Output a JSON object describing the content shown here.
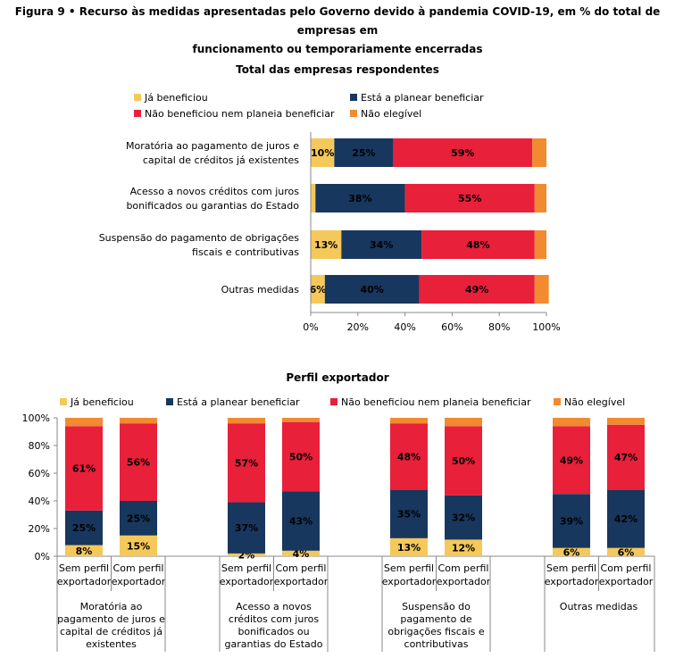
{
  "figure": {
    "title_line1": "Figura 9 • Recurso às medidas apresentadas pelo Governo devido à pandemia COVID-19, em % do total de empresas em",
    "title_line2": "funcionamento ou temporariamente encerradas"
  },
  "colors": {
    "ja_beneficiou": "#F5C85A",
    "planear": "#17375E",
    "nao_beneficiou": "#E8203A",
    "nao_elegivel": "#F28A30"
  },
  "chart_data": [
    {
      "type": "bar",
      "orientation": "horizontal",
      "stacked": true,
      "title": "Total das empresas respondentes",
      "legend": [
        "Já beneficiou",
        "Está a planear beneficiar",
        "Não beneficiou nem planeia beneficiar",
        "Não elegível"
      ],
      "legend_position": "top",
      "categories": [
        [
          "Moratória ao pagamento de juros e",
          "capital de créditos já existentes"
        ],
        [
          "Acesso a novos créditos com juros",
          "bonificados ou garantias do Estado"
        ],
        [
          "Suspensão do pagamento de obrigações",
          "fiscais e contributivas"
        ],
        [
          "Outras medidas"
        ]
      ],
      "series": [
        {
          "name": "Já beneficiou",
          "values": [
            10,
            2,
            13,
            6
          ],
          "labels": [
            "10%",
            "",
            "13%",
            "6%"
          ]
        },
        {
          "name": "Está a planear beneficiar",
          "values": [
            25,
            38,
            34,
            40
          ],
          "labels": [
            "25%",
            "38%",
            "34%",
            "40%"
          ]
        },
        {
          "name": "Não beneficiou nem planeia beneficiar",
          "values": [
            59,
            55,
            48,
            49
          ],
          "labels": [
            "59%",
            "55%",
            "48%",
            "49%"
          ]
        },
        {
          "name": "Não elegível",
          "values": [
            6,
            5,
            5,
            6
          ],
          "labels": [
            "",
            "",
            "",
            ""
          ]
        }
      ],
      "xlim": [
        0,
        100
      ],
      "ticks": [
        "0%",
        "20%",
        "40%",
        "60%",
        "80%",
        "100%"
      ]
    },
    {
      "type": "bar",
      "orientation": "vertical",
      "stacked": true,
      "title": "Perfil exportador",
      "legend": [
        "Já beneficiou",
        "Está a planear beneficiar",
        "Não beneficiou nem planeia beneficiar",
        "Não elegível"
      ],
      "legend_position": "top",
      "groups": [
        [
          "Moratória ao",
          "pagamento de juros e",
          "capital de créditos já",
          "existentes"
        ],
        [
          "Acesso a novos",
          "créditos com juros",
          "bonificados ou",
          "garantias do Estado"
        ],
        [
          "Suspensão do",
          "pagamento de",
          "obrigações fiscais e",
          "contributivas"
        ],
        [
          "Outras medidas"
        ]
      ],
      "subcategories": [
        [
          "Sem perfil",
          "exportador"
        ],
        [
          "Com perfil",
          "exportador"
        ]
      ],
      "bars": [
        {
          "values": [
            8,
            25,
            61,
            6
          ],
          "labels": [
            "8%",
            "25%",
            "61%",
            ""
          ]
        },
        {
          "values": [
            15,
            25,
            56,
            4
          ],
          "labels": [
            "15%",
            "25%",
            "56%",
            ""
          ]
        },
        {
          "values": [
            2,
            37,
            57,
            4
          ],
          "labels": [
            "2%",
            "37%",
            "57%",
            ""
          ]
        },
        {
          "values": [
            4,
            43,
            50,
            3
          ],
          "labels": [
            "4%",
            "43%",
            "50%",
            ""
          ]
        },
        {
          "values": [
            13,
            35,
            48,
            4
          ],
          "labels": [
            "13%",
            "35%",
            "48%",
            ""
          ]
        },
        {
          "values": [
            12,
            32,
            50,
            6
          ],
          "labels": [
            "12%",
            "32%",
            "50%",
            ""
          ]
        },
        {
          "values": [
            6,
            39,
            49,
            6
          ],
          "labels": [
            "6%",
            "39%",
            "49%",
            ""
          ]
        },
        {
          "values": [
            6,
            42,
            47,
            5
          ],
          "labels": [
            "6%",
            "42%",
            "47%",
            ""
          ]
        }
      ],
      "ylim": [
        0,
        100
      ],
      "ticks": [
        "0%",
        "20%",
        "40%",
        "60%",
        "80%",
        "100%"
      ]
    }
  ]
}
